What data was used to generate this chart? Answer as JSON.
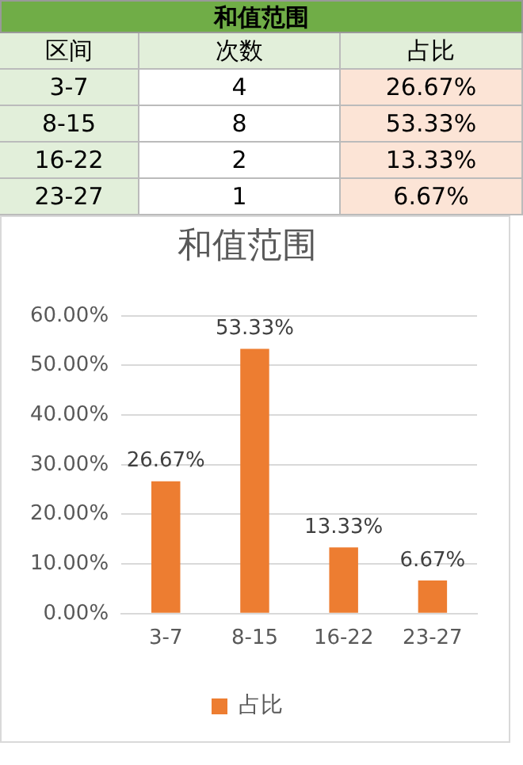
{
  "chart_data": [
    {
      "type": "other",
      "title": "和值范围",
      "annotations": [
        "区间",
        "次数",
        "占比",
        "3-7",
        "4",
        "26.67%",
        "8-15",
        "8",
        "53.33%",
        "16-22",
        "2",
        "13.33%",
        "23-27",
        "1",
        "6.67%"
      ]
    },
    {
      "type": "bar",
      "title": "和值范围",
      "categories": [
        "3-7",
        "8-15",
        "16-22",
        "23-27"
      ],
      "series": [
        {
          "name": "占比",
          "color": "#ed7d31",
          "values": [
            26.67,
            53.33,
            13.33,
            6.67
          ],
          "value_labels": [
            "26.67%",
            "53.33%",
            "13.33%",
            "6.67%"
          ]
        }
      ],
      "ylim": [
        0,
        60
      ],
      "yticks": [
        {
          "value": 0,
          "label": "0.00%"
        },
        {
          "value": 10,
          "label": "10.00%"
        },
        {
          "value": 20,
          "label": "20.00%"
        },
        {
          "value": 30,
          "label": "30.00%"
        },
        {
          "value": 40,
          "label": "40.00%"
        },
        {
          "value": 50,
          "label": "50.00%"
        },
        {
          "value": 60,
          "label": "60.00%"
        }
      ],
      "grid": "y",
      "legend": "bottom"
    }
  ]
}
